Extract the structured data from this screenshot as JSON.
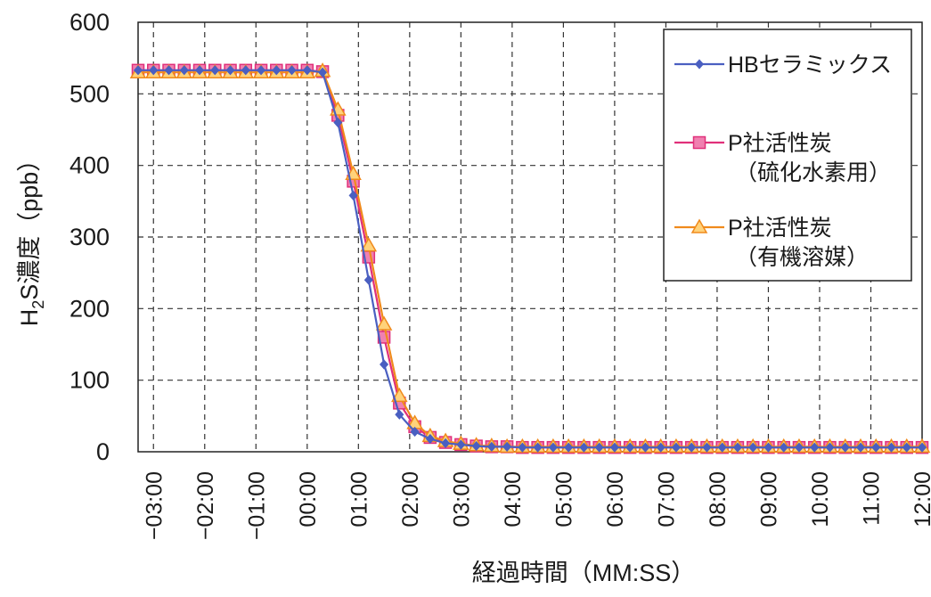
{
  "chart_data": {
    "type": "line",
    "xlabel": "経過時間（MM:SS）",
    "ylabel_main": "H",
    "ylabel_sub": "2",
    "ylabel_rest": "S濃度（ppb）",
    "ylim": [
      0,
      600
    ],
    "yticks": [
      "0",
      "100",
      "200",
      "300",
      "400",
      "500",
      "600"
    ],
    "xlim": [
      -3.3,
      12
    ],
    "xticks": [
      {
        "v": -3,
        "label": "−03:00"
      },
      {
        "v": -2,
        "label": "−02:00"
      },
      {
        "v": -1,
        "label": "−01:00"
      },
      {
        "v": 0,
        "label": "00:00"
      },
      {
        "v": 1,
        "label": "01:00"
      },
      {
        "v": 2,
        "label": "02:00"
      },
      {
        "v": 3,
        "label": "03:00"
      },
      {
        "v": 4,
        "label": "04:00"
      },
      {
        "v": 5,
        "label": "05:00"
      },
      {
        "v": 6,
        "label": "06:00"
      },
      {
        "v": 7,
        "label": "07:00"
      },
      {
        "v": 8,
        "label": "08:00"
      },
      {
        "v": 9,
        "label": "09:00"
      },
      {
        "v": 10,
        "label": "10:00"
      },
      {
        "v": 11,
        "label": "11:00"
      },
      {
        "v": 12,
        "label": "12:00"
      }
    ],
    "grid": true,
    "legend_position": "top-right",
    "series": [
      {
        "name": "HBセラミックス",
        "color": "#4a5fc1",
        "marker": "diamond",
        "x": [
          -3.3,
          -3,
          -2.7,
          -2.4,
          -2.1,
          -1.8,
          -1.5,
          -1.2,
          -0.9,
          -0.6,
          -0.3,
          0,
          0.3,
          0.6,
          0.9,
          1.2,
          1.5,
          1.8,
          2.1,
          2.4,
          2.7,
          3,
          3.3,
          3.6,
          3.9,
          4.2,
          4.5,
          4.8,
          5.1,
          5.4,
          5.7,
          6,
          6.3,
          6.6,
          6.9,
          7.2,
          7.5,
          7.8,
          8.1,
          8.4,
          8.7,
          9,
          9.3,
          9.6,
          9.9,
          10.2,
          10.5,
          10.8,
          11.1,
          11.4,
          11.7,
          12
        ],
        "y": [
          533,
          533,
          533,
          533,
          533,
          533,
          533,
          533,
          533,
          533,
          533,
          533,
          530,
          460,
          358,
          240,
          122,
          52,
          28,
          18,
          12,
          10,
          8,
          7,
          7,
          6,
          6,
          6,
          6,
          6,
          6,
          6,
          6,
          6,
          6,
          6,
          6,
          6,
          6,
          6,
          6,
          6,
          6,
          6,
          6,
          6,
          6,
          6,
          6,
          6,
          6,
          6
        ]
      },
      {
        "name": "P社活性炭（硫化水素用）",
        "legend_lines": [
          "P社活性炭",
          "（硫化水素用）"
        ],
        "color": "#e0307a",
        "marker": "square",
        "x": [
          -3.3,
          -3,
          -2.7,
          -2.4,
          -2.1,
          -1.8,
          -1.5,
          -1.2,
          -0.9,
          -0.6,
          -0.3,
          0,
          0.3,
          0.6,
          0.9,
          1.2,
          1.5,
          1.8,
          2.1,
          2.4,
          2.7,
          3,
          3.3,
          3.6,
          3.9,
          4.2,
          4.5,
          4.8,
          5.1,
          5.4,
          5.7,
          6,
          6.3,
          6.6,
          6.9,
          7.2,
          7.5,
          7.8,
          8.1,
          8.4,
          8.7,
          9,
          9.3,
          9.6,
          9.9,
          10.2,
          10.5,
          10.8,
          11.1,
          11.4,
          11.7,
          12
        ],
        "y": [
          533,
          533,
          533,
          533,
          533,
          533,
          533,
          533,
          533,
          533,
          533,
          533,
          531,
          470,
          378,
          272,
          160,
          68,
          35,
          20,
          13,
          10,
          8,
          7,
          7,
          6,
          6,
          6,
          6,
          6,
          6,
          6,
          6,
          6,
          6,
          6,
          6,
          6,
          6,
          6,
          6,
          6,
          6,
          6,
          6,
          6,
          6,
          6,
          6,
          6,
          6,
          6
        ]
      },
      {
        "name": "P社活性炭（有機溶媒）",
        "legend_lines": [
          "P社活性炭",
          "（有機溶媒）"
        ],
        "color": "#f08a1c",
        "marker": "triangle",
        "x": [
          -3.3,
          -3,
          -2.7,
          -2.4,
          -2.1,
          -1.8,
          -1.5,
          -1.2,
          -0.9,
          -0.6,
          -0.3,
          0,
          0.3,
          0.6,
          0.9,
          1.2,
          1.5,
          1.8,
          2.1,
          2.4,
          2.7,
          3,
          3.3,
          3.6,
          3.9,
          4.2,
          4.5,
          4.8,
          5.1,
          5.4,
          5.7,
          6,
          6.3,
          6.6,
          6.9,
          7.2,
          7.5,
          7.8,
          8.1,
          8.4,
          8.7,
          9,
          9.3,
          9.6,
          9.9,
          10.2,
          10.5,
          10.8,
          11.1,
          11.4,
          11.7,
          12
        ],
        "y": [
          530,
          530,
          530,
          530,
          530,
          530,
          530,
          530,
          530,
          530,
          530,
          530,
          532,
          478,
          388,
          288,
          178,
          78,
          40,
          22,
          15,
          11,
          9,
          8,
          7,
          7,
          7,
          7,
          7,
          7,
          7,
          7,
          7,
          7,
          7,
          7,
          7,
          7,
          7,
          7,
          7,
          7,
          7,
          7,
          7,
          7,
          7,
          7,
          7,
          7,
          7,
          7
        ]
      }
    ]
  }
}
